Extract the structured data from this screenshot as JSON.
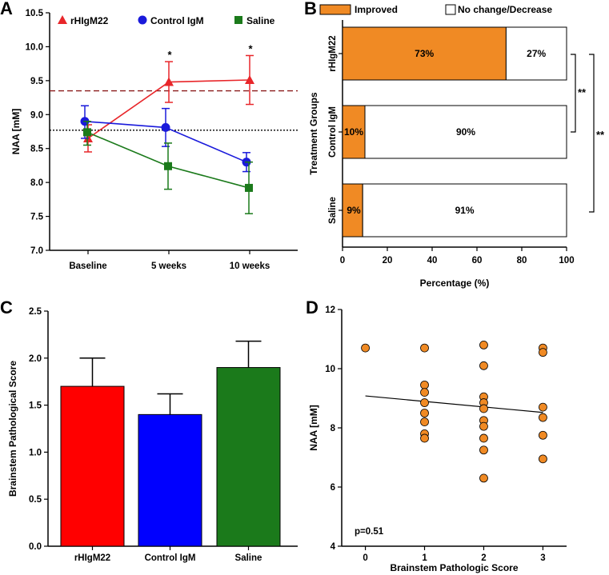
{
  "panels": {
    "A": "A",
    "B": "B",
    "C": "C",
    "D": "D"
  },
  "chart_data": [
    {
      "id": "A",
      "type": "line",
      "ylabel": "NAA [mM]",
      "xlabel": "",
      "categories": [
        "Baseline",
        "5 weeks",
        "10 weeks"
      ],
      "ylim": [
        7.0,
        10.5
      ],
      "yticks": [
        "7.0",
        "7.5",
        "8.0",
        "8.5",
        "9.0",
        "9.5",
        "10.0",
        "10.5"
      ],
      "reference_lines": [
        {
          "style": "dashed",
          "color": "#8b1a1a",
          "value": 9.35
        },
        {
          "style": "dotted",
          "color": "#000000",
          "value": 8.77
        }
      ],
      "series": [
        {
          "name": "rHIgM22",
          "color": "#e8262a",
          "marker": "triangle",
          "values": [
            8.65,
            9.48,
            9.51
          ],
          "err_low": [
            8.45,
            9.18,
            9.15
          ],
          "err_high": [
            8.85,
            9.78,
            9.87
          ]
        },
        {
          "name": "Control IgM",
          "color": "#1a1adb",
          "marker": "circle",
          "values": [
            8.9,
            8.81,
            8.3
          ],
          "err_low": [
            8.65,
            8.53,
            8.16
          ],
          "err_high": [
            9.13,
            9.09,
            8.44
          ]
        },
        {
          "name": "Saline",
          "color": "#1b7a1b",
          "marker": "square",
          "values": [
            8.74,
            8.24,
            7.92
          ],
          "err_low": [
            8.55,
            7.9,
            7.54
          ],
          "err_high": [
            8.9,
            8.58,
            8.3
          ]
        }
      ],
      "annotations": [
        "*",
        "*"
      ]
    },
    {
      "id": "B",
      "type": "bar",
      "orientation": "horizontal-stacked",
      "ylabel": "Treatment Groups",
      "xlabel": "Percentage (%)",
      "categories": [
        "rHIgM22",
        "Control IgM",
        "Saline"
      ],
      "xlim": [
        0,
        100
      ],
      "xticks": [
        "0",
        "20",
        "40",
        "60",
        "80",
        "100"
      ],
      "series": [
        {
          "name": "Improved",
          "color": "#f08a24",
          "values": [
            73,
            10,
            9
          ],
          "labels": [
            "73%",
            "10%",
            "9%"
          ]
        },
        {
          "name": "No change/Decrease",
          "color": "#ffffff",
          "values": [
            27,
            90,
            91
          ],
          "labels": [
            "27%",
            "90%",
            "91%"
          ]
        }
      ],
      "significance": [
        "**",
        "**"
      ]
    },
    {
      "id": "C",
      "type": "bar",
      "ylabel": "Brainstem Pathological Score",
      "xlabel": "",
      "categories": [
        "rHIgM22",
        "Control IgM",
        "Saline"
      ],
      "colors": [
        "#ff0000",
        "#0000ff",
        "#1b7a1b"
      ],
      "values": [
        1.7,
        1.4,
        1.9
      ],
      "err_high": [
        2.0,
        1.62,
        2.18
      ],
      "ylim": [
        0.0,
        2.5
      ],
      "yticks": [
        "0.0",
        "0.5",
        "1.0",
        "1.5",
        "2.0",
        "2.5"
      ]
    },
    {
      "id": "D",
      "type": "scatter",
      "ylabel": "NAA [mM]",
      "xlabel": "Brainstem Pathologic Score",
      "xlim": [
        -0.4,
        3.4
      ],
      "ylim": [
        4,
        12
      ],
      "xticks": [
        "0",
        "1",
        "2",
        "3"
      ],
      "yticks": [
        "4",
        "6",
        "8",
        "10",
        "12"
      ],
      "color": "#f08a24",
      "points": [
        [
          0,
          10.7
        ],
        [
          1,
          10.7
        ],
        [
          1,
          9.45
        ],
        [
          1,
          9.2
        ],
        [
          1,
          8.85
        ],
        [
          1,
          8.5
        ],
        [
          1,
          8.2
        ],
        [
          1,
          7.8
        ],
        [
          1,
          7.65
        ],
        [
          2,
          10.8
        ],
        [
          2,
          10.1
        ],
        [
          2,
          9.05
        ],
        [
          2,
          8.85
        ],
        [
          2,
          8.65
        ],
        [
          2,
          8.25
        ],
        [
          2,
          8.05
        ],
        [
          2,
          7.65
        ],
        [
          2,
          7.25
        ],
        [
          2,
          6.3
        ],
        [
          3,
          10.7
        ],
        [
          3,
          10.55
        ],
        [
          3,
          8.7
        ],
        [
          3,
          8.35
        ],
        [
          3,
          7.75
        ],
        [
          3,
          6.95
        ]
      ],
      "fit_line": [
        [
          0,
          9.08
        ],
        [
          3,
          8.52
        ]
      ],
      "annotation": "p=0.51"
    }
  ]
}
